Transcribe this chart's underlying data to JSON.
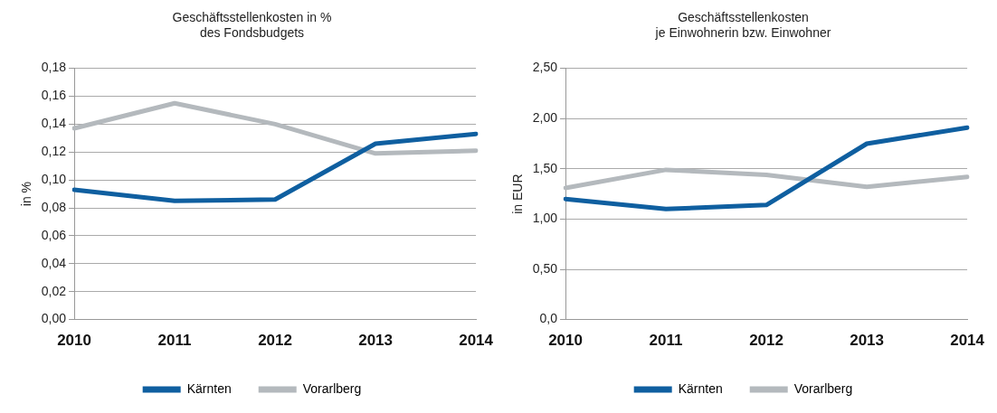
{
  "chart_data": [
    {
      "type": "line",
      "title": "Geschäftsstellenkosten in %\ndes Fondsbudgets",
      "ylabel": "in %",
      "categories": [
        "2010",
        "2011",
        "2012",
        "2013",
        "2014"
      ],
      "series": [
        {
          "name": "Kärnten",
          "color": "#0f5fa0",
          "values": [
            0.093,
            0.085,
            0.086,
            0.126,
            0.133
          ]
        },
        {
          "name": "Vorarlberg",
          "color": "#b4b9bd",
          "values": [
            0.137,
            0.155,
            0.14,
            0.119,
            0.121
          ]
        }
      ],
      "ylim": [
        0,
        0.18
      ],
      "yticks": [
        {
          "value": 0,
          "label": "0,00"
        },
        {
          "value": 0.02,
          "label": "0,02"
        },
        {
          "value": 0.04,
          "label": "0,04"
        },
        {
          "value": 0.06,
          "label": "0,06"
        },
        {
          "value": 0.08,
          "label": "0,08"
        },
        {
          "value": 0.1,
          "label": "0,10"
        },
        {
          "value": 0.12,
          "label": "0,12"
        },
        {
          "value": 0.14,
          "label": "0,14"
        },
        {
          "value": 0.16,
          "label": "0,16"
        },
        {
          "value": 0.18,
          "label": "0,18"
        }
      ],
      "grid": "y",
      "legend": "bottom",
      "marker": "none",
      "line_style": "solid"
    },
    {
      "type": "line",
      "title": "Geschäftsstellenkosten\nje Einwohnerin bzw. Einwohner",
      "ylabel": "in EUR",
      "categories": [
        "2010",
        "2011",
        "2012",
        "2013",
        "2014"
      ],
      "series": [
        {
          "name": "Kärnten",
          "color": "#0f5fa0",
          "values": [
            1.2,
            1.1,
            1.14,
            1.75,
            1.91
          ]
        },
        {
          "name": "Vorarlberg",
          "color": "#b4b9bd",
          "values": [
            1.31,
            1.49,
            1.44,
            1.32,
            1.42
          ]
        }
      ],
      "ylim": [
        0,
        2.5
      ],
      "yticks": [
        {
          "value": 0,
          "label": "0,0"
        },
        {
          "value": 0.5,
          "label": "0,50"
        },
        {
          "value": 1,
          "label": "1,00"
        },
        {
          "value": 1.5,
          "label": "1,50"
        },
        {
          "value": 2,
          "label": "2,00"
        },
        {
          "value": 2.5,
          "label": "2,50"
        }
      ],
      "grid": "y",
      "legend": "bottom",
      "marker": "none",
      "line_style": "solid"
    }
  ]
}
